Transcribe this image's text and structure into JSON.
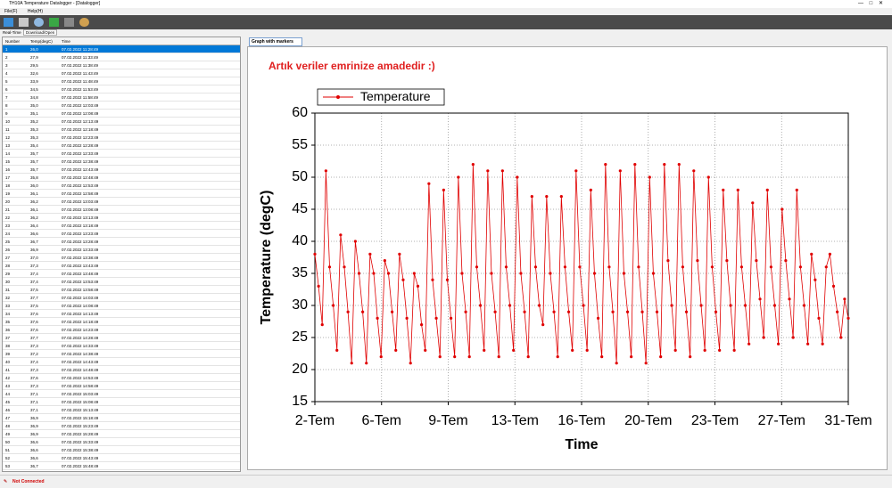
{
  "window": {
    "title": "TH10A Temperature Datalogger - [Datalogger]",
    "menu": [
      "File(F)",
      "Help(H)"
    ]
  },
  "tabs": [
    "Real-Time",
    "Download/Open"
  ],
  "table": {
    "columns": [
      "Number",
      "Temp(degC)",
      "Time"
    ],
    "rows": [
      [
        "1",
        "26,0",
        "07.02.2022 11:28:49"
      ],
      [
        "2",
        "27,9",
        "07.02.2022 11:33:49"
      ],
      [
        "3",
        "29,5",
        "07.02.2022 11:38:49"
      ],
      [
        "4",
        "32,6",
        "07.02.2022 11:43:49"
      ],
      [
        "5",
        "33,9",
        "07.02.2022 11:48:49"
      ],
      [
        "6",
        "34,5",
        "07.02.2022 11:53:49"
      ],
      [
        "7",
        "34,8",
        "07.02.2022 11:58:49"
      ],
      [
        "8",
        "35,0",
        "07.02.2022 12:03:49"
      ],
      [
        "9",
        "35,1",
        "07.02.2022 12:08:49"
      ],
      [
        "10",
        "35,2",
        "07.02.2022 12:13:49"
      ],
      [
        "11",
        "35,3",
        "07.02.2022 12:18:49"
      ],
      [
        "12",
        "35,3",
        "07.02.2022 12:23:49"
      ],
      [
        "13",
        "35,4",
        "07.02.2022 12:28:49"
      ],
      [
        "14",
        "35,7",
        "07.02.2022 12:33:49"
      ],
      [
        "15",
        "35,7",
        "07.02.2022 12:38:49"
      ],
      [
        "16",
        "35,7",
        "07.02.2022 12:43:49"
      ],
      [
        "17",
        "35,8",
        "07.02.2022 12:48:49"
      ],
      [
        "18",
        "36,0",
        "07.02.2022 12:53:49"
      ],
      [
        "19",
        "36,1",
        "07.02.2022 12:58:49"
      ],
      [
        "20",
        "36,2",
        "07.02.2022 13:03:49"
      ],
      [
        "21",
        "36,1",
        "07.02.2022 13:08:49"
      ],
      [
        "22",
        "36,2",
        "07.02.2022 13:13:49"
      ],
      [
        "23",
        "36,4",
        "07.02.2022 13:18:49"
      ],
      [
        "24",
        "36,6",
        "07.02.2022 13:23:49"
      ],
      [
        "25",
        "36,7",
        "07.02.2022 13:28:49"
      ],
      [
        "26",
        "36,9",
        "07.02.2022 13:33:49"
      ],
      [
        "27",
        "37,0",
        "07.02.2022 13:38:49"
      ],
      [
        "28",
        "37,3",
        "07.02.2022 13:43:49"
      ],
      [
        "29",
        "37,4",
        "07.02.2022 13:48:49"
      ],
      [
        "30",
        "37,4",
        "07.02.2022 13:53:49"
      ],
      [
        "31",
        "37,5",
        "07.02.2022 13:58:49"
      ],
      [
        "32",
        "37,7",
        "07.02.2022 14:03:49"
      ],
      [
        "33",
        "37,5",
        "07.02.2022 14:08:49"
      ],
      [
        "34",
        "37,6",
        "07.02.2022 14:13:49"
      ],
      [
        "35",
        "37,6",
        "07.02.2022 14:18:49"
      ],
      [
        "36",
        "37,6",
        "07.02.2022 14:23:49"
      ],
      [
        "37",
        "37,7",
        "07.02.2022 14:28:49"
      ],
      [
        "38",
        "37,3",
        "07.02.2022 14:33:49"
      ],
      [
        "39",
        "37,2",
        "07.02.2022 14:38:49"
      ],
      [
        "40",
        "37,4",
        "07.02.2022 14:43:49"
      ],
      [
        "41",
        "37,3",
        "07.02.2022 14:48:49"
      ],
      [
        "42",
        "37,6",
        "07.02.2022 14:53:49"
      ],
      [
        "43",
        "37,3",
        "07.02.2022 14:58:49"
      ],
      [
        "44",
        "37,1",
        "07.02.2022 15:03:49"
      ],
      [
        "45",
        "37,1",
        "07.02.2022 15:08:49"
      ],
      [
        "46",
        "37,1",
        "07.02.2022 15:13:49"
      ],
      [
        "47",
        "36,9",
        "07.02.2022 15:18:49"
      ],
      [
        "48",
        "36,9",
        "07.02.2022 15:23:49"
      ],
      [
        "49",
        "36,9",
        "07.02.2022 15:28:49"
      ],
      [
        "50",
        "36,6",
        "07.02.2022 15:33:49"
      ],
      [
        "51",
        "36,6",
        "07.02.2022 15:38:49"
      ],
      [
        "52",
        "36,6",
        "07.02.2022 15:43:49"
      ],
      [
        "53",
        "36,7",
        "07.02.2022 15:48:49"
      ]
    ]
  },
  "graph_tab": "Graph with markers",
  "status": "Not Connected",
  "chart_data": {
    "type": "line",
    "annotation": "Artık veriler emrinize amadedir :)",
    "x_label": "Time",
    "y_label": "Temperature (degC)",
    "xlim": [
      2,
      31
    ],
    "xticks": [
      {
        "value": 2,
        "label": "2-Tem"
      },
      {
        "value": 5.625,
        "label": "6-Tem"
      },
      {
        "value": 9.25,
        "label": "9-Tem"
      },
      {
        "value": 12.875,
        "label": "13-Tem"
      },
      {
        "value": 16.5,
        "label": "16-Tem"
      },
      {
        "value": 20.125,
        "label": "20-Tem"
      },
      {
        "value": 23.75,
        "label": "23-Tem"
      },
      {
        "value": 27.375,
        "label": "27-Tem"
      },
      {
        "value": 31,
        "label": "31-Tem"
      }
    ],
    "ylim": [
      15,
      60
    ],
    "yticks": [
      15,
      20,
      25,
      30,
      35,
      40,
      45,
      50,
      55,
      60
    ],
    "grid": true,
    "legend": "top-left",
    "series": [
      {
        "name": "Temperature",
        "color": "#e00000",
        "x": [
          2,
          2.2,
          2.4,
          2.6,
          2.8,
          3,
          3.2,
          3.4,
          3.6,
          3.8,
          4,
          4.2,
          4.4,
          4.6,
          4.8,
          5,
          5.2,
          5.4,
          5.6,
          5.8,
          6,
          6.2,
          6.4,
          6.6,
          6.8,
          7,
          7.2,
          7.4,
          7.6,
          7.8,
          8,
          8.2,
          8.4,
          8.6,
          8.8,
          9,
          9.2,
          9.4,
          9.6,
          9.8,
          10,
          10.2,
          10.4,
          10.6,
          10.8,
          11,
          11.2,
          11.4,
          11.6,
          11.8,
          12,
          12.2,
          12.4,
          12.6,
          12.8,
          13,
          13.2,
          13.4,
          13.6,
          13.8,
          14,
          14.2,
          14.4,
          14.6,
          14.8,
          15,
          15.2,
          15.4,
          15.6,
          15.8,
          16,
          16.2,
          16.4,
          16.6,
          16.8,
          17,
          17.2,
          17.4,
          17.6,
          17.8,
          18,
          18.2,
          18.4,
          18.6,
          18.8,
          19,
          19.2,
          19.4,
          19.6,
          19.8,
          20,
          20.2,
          20.4,
          20.6,
          20.8,
          21,
          21.2,
          21.4,
          21.6,
          21.8,
          22,
          22.2,
          22.4,
          22.6,
          22.8,
          23,
          23.2,
          23.4,
          23.6,
          23.8,
          24,
          24.2,
          24.4,
          24.6,
          24.8,
          25,
          25.2,
          25.4,
          25.6,
          25.8,
          26,
          26.2,
          26.4,
          26.6,
          26.8,
          27,
          27.2,
          27.4,
          27.6,
          27.8,
          28,
          28.2,
          28.4,
          28.6,
          28.8,
          29,
          29.2,
          29.4,
          29.6,
          29.8,
          30,
          30.2,
          30.4,
          30.6,
          30.8,
          31
        ],
        "values": [
          38,
          33,
          27,
          51,
          36,
          30,
          23,
          41,
          36,
          29,
          21,
          40,
          35,
          29,
          21,
          38,
          35,
          28,
          22,
          37,
          35,
          29,
          23,
          38,
          34,
          28,
          21,
          35,
          33,
          27,
          23,
          49,
          34,
          28,
          22,
          48,
          34,
          28,
          22,
          50,
          35,
          29,
          22,
          52,
          36,
          30,
          23,
          51,
          35,
          29,
          22,
          51,
          36,
          30,
          23,
          50,
          35,
          29,
          22,
          47,
          36,
          30,
          27,
          47,
          35,
          29,
          22,
          47,
          36,
          29,
          23,
          51,
          36,
          30,
          23,
          48,
          35,
          28,
          22,
          52,
          36,
          29,
          21,
          51,
          35,
          29,
          22,
          52,
          36,
          29,
          21,
          50,
          35,
          29,
          22,
          52,
          37,
          30,
          23,
          52,
          36,
          29,
          22,
          51,
          37,
          30,
          23,
          50,
          36,
          29,
          23,
          48,
          37,
          30,
          23,
          48,
          36,
          30,
          24,
          46,
          37,
          31,
          25,
          48,
          36,
          30,
          24,
          45,
          37,
          31,
          25,
          48,
          36,
          30,
          24,
          38,
          34,
          28,
          24,
          36,
          38,
          33,
          29,
          25,
          31,
          28
        ]
      }
    ]
  }
}
